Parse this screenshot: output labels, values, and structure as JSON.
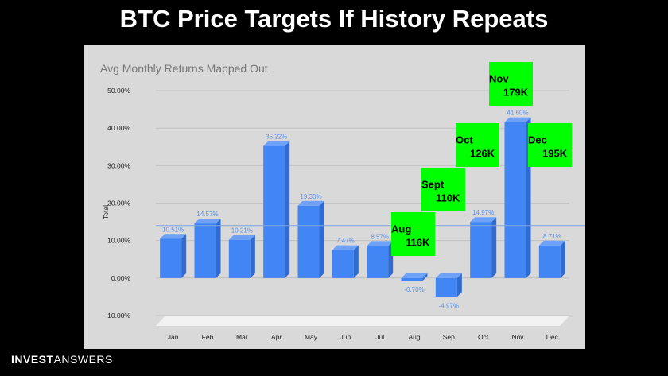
{
  "header": {
    "title": "BTC Price Targets If History Repeats"
  },
  "brand": {
    "strong": "INVEST",
    "light": "ANSWERS"
  },
  "chart_data": {
    "type": "bar",
    "title": "Avg Monthly Returns Mapped Out",
    "xlabel": "",
    "ylabel": "Total",
    "categories": [
      "Jan",
      "Feb",
      "Mar",
      "Apr",
      "May",
      "Jun",
      "Jul",
      "Aug",
      "Sep",
      "Oct",
      "Nov",
      "Dec"
    ],
    "values": [
      10.51,
      14.57,
      10.21,
      35.22,
      19.3,
      7.47,
      8.57,
      -0.7,
      -4.97,
      14.97,
      41.6,
      8.71
    ],
    "data_labels": [
      "10.51%",
      "14.57%",
      "10.21%",
      "35.22%",
      "19.30%",
      "7.47%",
      "8.57%",
      "-0.70%",
      "-4.97%",
      "14.97%",
      "41.60%",
      "8.71%"
    ],
    "ylim": [
      -10,
      50
    ],
    "yticks": [
      "-10.00%",
      "0.00%",
      "10.00%",
      "20.00%",
      "30.00%",
      "40.00%",
      "50.00%"
    ],
    "grid": true,
    "bar_color": "#4285f4",
    "reference_line_value": 14,
    "annotations": [
      {
        "month": "Aug",
        "line1": "Aug",
        "line2": "116K"
      },
      {
        "month": "Sep",
        "line1": "Sept",
        "line2": "110K"
      },
      {
        "month": "Oct",
        "line1": "Oct",
        "line2": "126K"
      },
      {
        "month": "Nov",
        "line1": "Nov",
        "line2": "179K"
      },
      {
        "month": "Dec",
        "line1": "Dec",
        "line2": "195K"
      }
    ],
    "annotation_color": "#00ff00"
  }
}
